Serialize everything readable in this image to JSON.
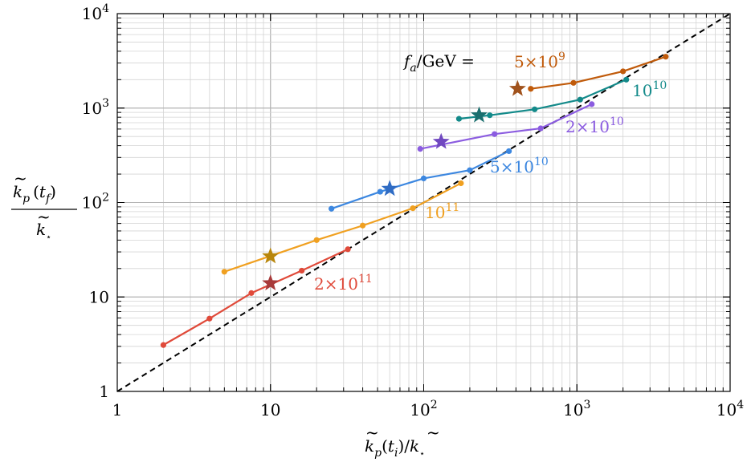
{
  "chart_data": {
    "type": "line",
    "scale": "log-log",
    "xlim": [
      1,
      10000
    ],
    "ylim": [
      1,
      10000
    ],
    "grid": true,
    "x_ticks": [
      {
        "value": 1,
        "base": "1",
        "exp": ""
      },
      {
        "value": 10,
        "base": "10",
        "exp": ""
      },
      {
        "value": 100,
        "base": "10",
        "exp": "2"
      },
      {
        "value": 1000,
        "base": "10",
        "exp": "3"
      },
      {
        "value": 10000,
        "base": "10",
        "exp": "4"
      }
    ],
    "y_ticks": [
      {
        "value": 1,
        "base": "1",
        "exp": ""
      },
      {
        "value": 10,
        "base": "10",
        "exp": ""
      },
      {
        "value": 100,
        "base": "10",
        "exp": "2"
      },
      {
        "value": 1000,
        "base": "10",
        "exp": "3"
      },
      {
        "value": 10000,
        "base": "10",
        "exp": "4"
      }
    ],
    "xlabel": {
      "k": "k",
      "tilde": "~",
      "p": "p",
      "open": "(",
      "t": "t",
      "i": "i",
      "close": ")",
      "slash": "/",
      "star": "⋆"
    },
    "ylabel": {
      "k": "k",
      "tilde": "~",
      "p": "p",
      "open": "(",
      "t": "t",
      "f": "f",
      "close": ")",
      "star": "⋆"
    },
    "legend_prefix": {
      "f": "f",
      "a": "a",
      "rest": "/GeV ="
    },
    "diagonal": {
      "style": "dashed",
      "color": "#000000",
      "from": [
        1,
        1
      ],
      "to": [
        10000,
        10000
      ]
    },
    "series": [
      {
        "label_base": "5×10",
        "label_exp": "9",
        "color": "#C05A0A",
        "star_color": "#A0521C",
        "x": [
          500,
          950,
          2000,
          3800
        ],
        "y": [
          1600,
          1850,
          2450,
          3500
        ],
        "star": [
          410,
          1600
        ]
      },
      {
        "label_base": "10",
        "label_exp": "10",
        "color": "#138A8A",
        "star_color": "#1A6E6E",
        "x": [
          170,
          270,
          530,
          1050,
          2100
        ],
        "y": [
          770,
          840,
          970,
          1230,
          2000
        ],
        "star": [
          230,
          840
        ]
      },
      {
        "label_base": "2×10",
        "label_exp": "10",
        "color": "#8B5CE0",
        "star_color": "#7048C0",
        "x": [
          95,
          290,
          580,
          1250
        ],
        "y": [
          370,
          530,
          610,
          1100
        ],
        "star": [
          130,
          440
        ]
      },
      {
        "label_base": "5×10",
        "label_exp": "10",
        "color": "#3C87E0",
        "star_color": "#2F6CC4",
        "x": [
          25,
          52,
          100,
          200,
          360
        ],
        "y": [
          86,
          130,
          180,
          220,
          350
        ],
        "star": [
          60,
          140
        ]
      },
      {
        "label_base": "10",
        "label_exp": "11",
        "color": "#F0A020",
        "star_color": "#B8860B",
        "x": [
          5,
          20,
          40,
          85,
          175
        ],
        "y": [
          18.5,
          40,
          57,
          87,
          160
        ],
        "star": [
          10,
          27
        ]
      },
      {
        "label_base": "2×10",
        "label_exp": "11",
        "color": "#E04A3A",
        "star_color": "#A83A3A",
        "x": [
          2,
          4,
          7.5,
          16,
          32
        ],
        "y": [
          3.1,
          5.9,
          11,
          19,
          32
        ],
        "star": [
          10,
          14
        ]
      }
    ]
  }
}
